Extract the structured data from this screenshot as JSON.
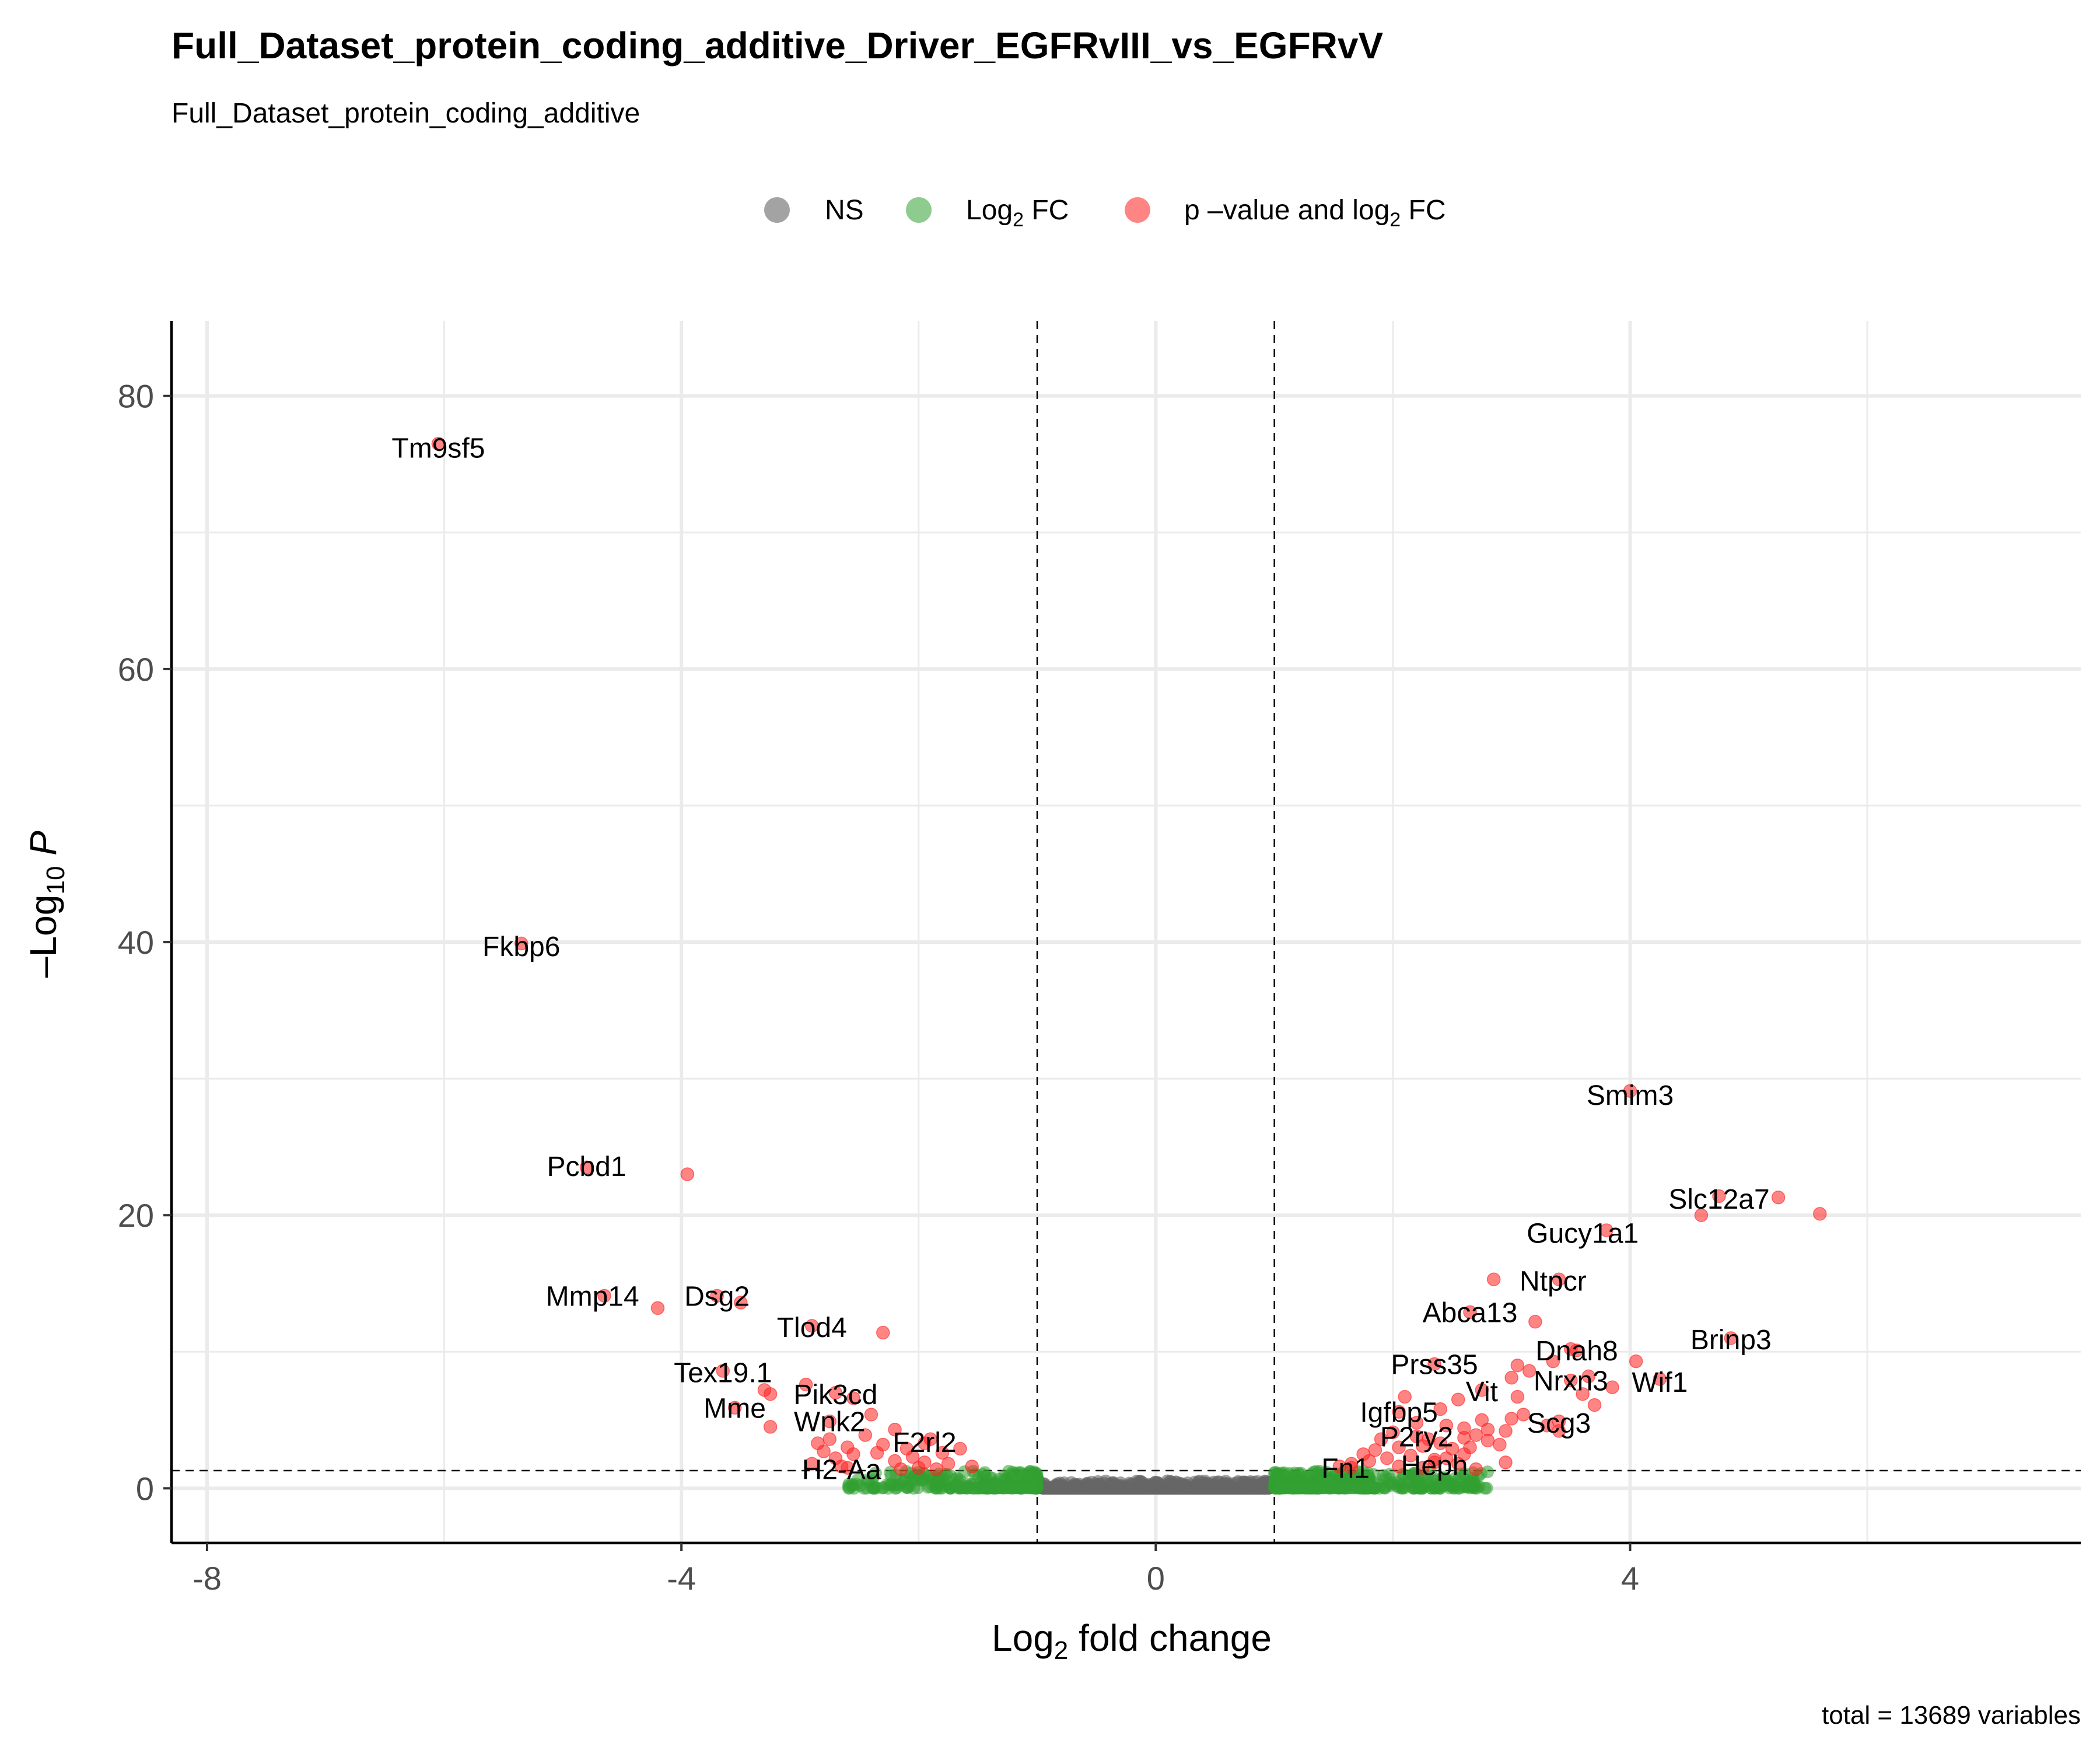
{
  "chart_data": {
    "type": "scatter",
    "title": "Full_Dataset_protein_coding_additive_Driver_EGFRvIII_vs_EGFRvV",
    "subtitle": "Full_Dataset_protein_coding_additive",
    "xlabel_main": "Log",
    "xlabel_sub": "2",
    "xlabel_rest": " fold change",
    "ylabel_prefix": "–Log",
    "ylabel_sub": "10",
    "ylabel_italic": "P",
    "caption": "total = 13689 variables",
    "xlim": [
      -8.3,
      7.8
    ],
    "ylim": [
      -4,
      85.5
    ],
    "x_ticks": [
      -8,
      -4,
      0,
      4
    ],
    "x_tick_labels": [
      "-8",
      "-4",
      "0",
      "4"
    ],
    "y_ticks": [
      0,
      20,
      40,
      60,
      80
    ],
    "y_tick_labels": [
      "0",
      "20",
      "40",
      "60",
      "80"
    ],
    "x_minor": [
      -6,
      -2,
      2,
      6
    ],
    "y_minor": [
      10,
      30,
      50,
      70
    ],
    "fc_cutoff": 1,
    "p_cutoff_y": 1.3,
    "colors": {
      "NS": "#666666",
      "FC": "#32a032",
      "Both": "#ff2020"
    },
    "legend": [
      {
        "key": "NS",
        "label": "NS"
      },
      {
        "key": "FC",
        "label_main": "Log",
        "label_sub": "2",
        "label_rest": " FC"
      },
      {
        "key": "Both",
        "label_main": "p –value and log",
        "label_sub": "2",
        "label_rest": " FC"
      }
    ],
    "labeled_points": [
      {
        "gene": "Tm9sf5",
        "x": -6.05,
        "y": 76.5,
        "lx": -6.05,
        "ly": 76.2
      },
      {
        "gene": "Fkbp6",
        "x": -5.35,
        "y": 39.9,
        "lx": -5.35,
        "ly": 39.7
      },
      {
        "gene": "Pcbd1",
        "x": -4.8,
        "y": 23.5,
        "lx": -4.8,
        "ly": 23.6
      },
      {
        "gene": "Mmp14",
        "x": -4.65,
        "y": 14.1,
        "lx": -4.75,
        "ly": 14.1
      },
      {
        "gene": "Dsg2",
        "x": -3.7,
        "y": 14.1,
        "lx": -3.7,
        "ly": 14.1
      },
      {
        "gene": "Tlod4",
        "x": -2.9,
        "y": 11.9,
        "lx": -2.9,
        "ly": 11.8
      },
      {
        "gene": "Tex19.1",
        "x": -3.65,
        "y": 8.6,
        "lx": -3.65,
        "ly": 8.5
      },
      {
        "gene": "Mme",
        "x": -3.55,
        "y": 5.9,
        "lx": -3.55,
        "ly": 5.9
      },
      {
        "gene": "Pik3cd",
        "x": -2.7,
        "y": 7.0,
        "lx": -2.7,
        "ly": 6.9
      },
      {
        "gene": "Wnk2",
        "x": -2.75,
        "y": 4.9,
        "lx": -2.75,
        "ly": 4.9
      },
      {
        "gene": "F2rl2",
        "x": -1.95,
        "y": 3.3,
        "lx": -1.95,
        "ly": 3.4
      },
      {
        "gene": "H2-Aa",
        "x": -2.65,
        "y": 1.6,
        "lx": -2.65,
        "ly": 1.4
      },
      {
        "gene": "Smim3",
        "x": 4.0,
        "y": 29.1,
        "lx": 4.0,
        "ly": 28.8
      },
      {
        "gene": "Slc12a7",
        "x": 4.75,
        "y": 21.4,
        "lx": 4.75,
        "ly": 21.2
      },
      {
        "gene": "Gucy1a1",
        "x": 3.8,
        "y": 18.9,
        "lx": 3.6,
        "ly": 18.7
      },
      {
        "gene": "Ntpcr",
        "x": 3.4,
        "y": 15.3,
        "lx": 3.35,
        "ly": 15.2
      },
      {
        "gene": "Abca13",
        "x": 2.65,
        "y": 12.9,
        "lx": 2.65,
        "ly": 12.9
      },
      {
        "gene": "Dnah8",
        "x": 3.55,
        "y": 10.1,
        "lx": 3.55,
        "ly": 10.1
      },
      {
        "gene": "Brinp3",
        "x": 4.85,
        "y": 11.0,
        "lx": 4.85,
        "ly": 10.9
      },
      {
        "gene": "Prss35",
        "x": 2.35,
        "y": 9.1,
        "lx": 2.35,
        "ly": 9.1
      },
      {
        "gene": "Wif1",
        "x": 4.25,
        "y": 8.0,
        "lx": 4.25,
        "ly": 7.8
      },
      {
        "gene": "Nrxn3",
        "x": 3.5,
        "y": 7.9,
        "lx": 3.5,
        "ly": 7.9
      },
      {
        "gene": "Vit",
        "x": 2.75,
        "y": 7.2,
        "lx": 2.75,
        "ly": 7.1
      },
      {
        "gene": "Igfbp5",
        "x": 2.05,
        "y": 5.6,
        "lx": 2.05,
        "ly": 5.6
      },
      {
        "gene": "Scg3",
        "x": 3.4,
        "y": 4.9,
        "lx": 3.4,
        "ly": 4.8
      },
      {
        "gene": "P2ry2",
        "x": 2.2,
        "y": 3.8,
        "lx": 2.2,
        "ly": 3.8
      },
      {
        "gene": "Heph",
        "x": 2.35,
        "y": 1.9,
        "lx": 2.35,
        "ly": 1.7
      },
      {
        "gene": "Fn1",
        "x": 1.65,
        "y": 1.5,
        "lx": 1.6,
        "ly": 1.5
      }
    ],
    "red_points": [
      [
        -3.95,
        23.0
      ],
      [
        -4.2,
        13.2
      ],
      [
        -3.5,
        13.6
      ],
      [
        -2.3,
        11.4
      ],
      [
        -3.3,
        7.2
      ],
      [
        -3.25,
        6.9
      ],
      [
        -3.25,
        4.5
      ],
      [
        -2.95,
        7.6
      ],
      [
        -2.85,
        3.3
      ],
      [
        -2.75,
        3.6
      ],
      [
        -2.6,
        3.0
      ],
      [
        -2.55,
        6.6
      ],
      [
        -2.4,
        5.4
      ],
      [
        -2.45,
        3.9
      ],
      [
        -2.3,
        3.2
      ],
      [
        -2.2,
        4.3
      ],
      [
        -2.1,
        2.9
      ],
      [
        -2.05,
        2.3
      ],
      [
        -1.9,
        3.6
      ],
      [
        -1.8,
        2.6
      ],
      [
        -1.65,
        2.9
      ],
      [
        -1.55,
        1.6
      ],
      [
        -2.9,
        1.8
      ],
      [
        -2.7,
        2.2
      ],
      [
        -2.55,
        2.5
      ],
      [
        -2.35,
        2.6
      ],
      [
        -2.2,
        2.0
      ],
      [
        -1.95,
        1.9
      ],
      [
        -2.6,
        1.5
      ],
      [
        -2.0,
        1.5
      ],
      [
        -1.75,
        1.8
      ],
      [
        -2.8,
        2.7
      ],
      [
        -2.15,
        1.4
      ],
      [
        -1.85,
        1.4
      ],
      [
        5.6,
        20.1
      ],
      [
        5.25,
        21.3
      ],
      [
        4.6,
        20.0
      ],
      [
        2.85,
        15.3
      ],
      [
        3.2,
        12.2
      ],
      [
        3.5,
        10.2
      ],
      [
        3.35,
        9.3
      ],
      [
        4.05,
        9.3
      ],
      [
        3.05,
        9.0
      ],
      [
        3.15,
        8.6
      ],
      [
        3.65,
        8.2
      ],
      [
        3.0,
        8.1
      ],
      [
        3.85,
        7.4
      ],
      [
        3.6,
        6.9
      ],
      [
        3.7,
        6.1
      ],
      [
        3.05,
        6.7
      ],
      [
        2.55,
        6.5
      ],
      [
        2.4,
        5.8
      ],
      [
        3.0,
        5.1
      ],
      [
        3.1,
        5.4
      ],
      [
        3.3,
        4.6
      ],
      [
        2.95,
        4.2
      ],
      [
        2.8,
        4.3
      ],
      [
        2.7,
        3.9
      ],
      [
        2.6,
        3.7
      ],
      [
        2.45,
        4.6
      ],
      [
        2.3,
        3.6
      ],
      [
        2.1,
        6.7
      ],
      [
        2.2,
        4.8
      ],
      [
        2.9,
        3.2
      ],
      [
        2.95,
        1.9
      ],
      [
        3.4,
        4.2
      ],
      [
        2.0,
        4.1
      ],
      [
        1.9,
        3.6
      ],
      [
        1.85,
        2.8
      ],
      [
        2.15,
        2.4
      ],
      [
        2.5,
        2.9
      ],
      [
        2.35,
        2.1
      ],
      [
        2.7,
        1.4
      ],
      [
        1.8,
        2.0
      ],
      [
        2.05,
        1.6
      ],
      [
        1.65,
        1.8
      ],
      [
        2.6,
        2.5
      ],
      [
        2.45,
        2.2
      ],
      [
        2.25,
        3.1
      ],
      [
        2.05,
        3.0
      ],
      [
        1.95,
        2.2
      ],
      [
        2.8,
        3.5
      ],
      [
        2.75,
        5.0
      ],
      [
        2.6,
        4.4
      ],
      [
        2.4,
        3.3
      ],
      [
        1.75,
        2.5
      ],
      [
        1.55,
        1.6
      ],
      [
        2.55,
        1.8
      ],
      [
        2.25,
        1.5
      ],
      [
        2.65,
        3.0
      ]
    ]
  }
}
